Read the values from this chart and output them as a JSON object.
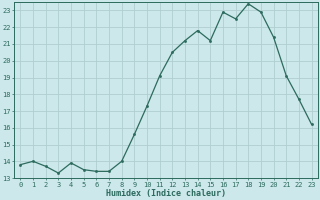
{
  "x": [
    0,
    1,
    2,
    3,
    4,
    5,
    6,
    7,
    8,
    9,
    10,
    11,
    12,
    13,
    14,
    15,
    16,
    17,
    18,
    19,
    20,
    21,
    22,
    23
  ],
  "y": [
    13.8,
    14.0,
    13.7,
    13.3,
    13.9,
    13.5,
    13.4,
    13.4,
    14.0,
    15.6,
    17.3,
    19.1,
    20.5,
    21.2,
    21.8,
    21.2,
    22.9,
    22.5,
    23.4,
    22.9,
    21.4,
    19.1,
    17.7,
    16.2
  ],
  "xlim": [
    -0.5,
    23.5
  ],
  "ylim": [
    13.0,
    23.5
  ],
  "yticks": [
    13,
    14,
    15,
    16,
    17,
    18,
    19,
    20,
    21,
    22,
    23
  ],
  "xticks": [
    0,
    1,
    2,
    3,
    4,
    5,
    6,
    7,
    8,
    9,
    10,
    11,
    12,
    13,
    14,
    15,
    16,
    17,
    18,
    19,
    20,
    21,
    22,
    23
  ],
  "xlabel": "Humidex (Indice chaleur)",
  "line_color": "#2d6b5e",
  "marker_color": "#2d6b5e",
  "bg_color": "#cce8ea",
  "grid_color": "#b0cdd0",
  "tick_label_color": "#2d6b5e",
  "xlabel_color": "#2d6b5e",
  "figsize": [
    3.2,
    2.0
  ],
  "dpi": 100
}
